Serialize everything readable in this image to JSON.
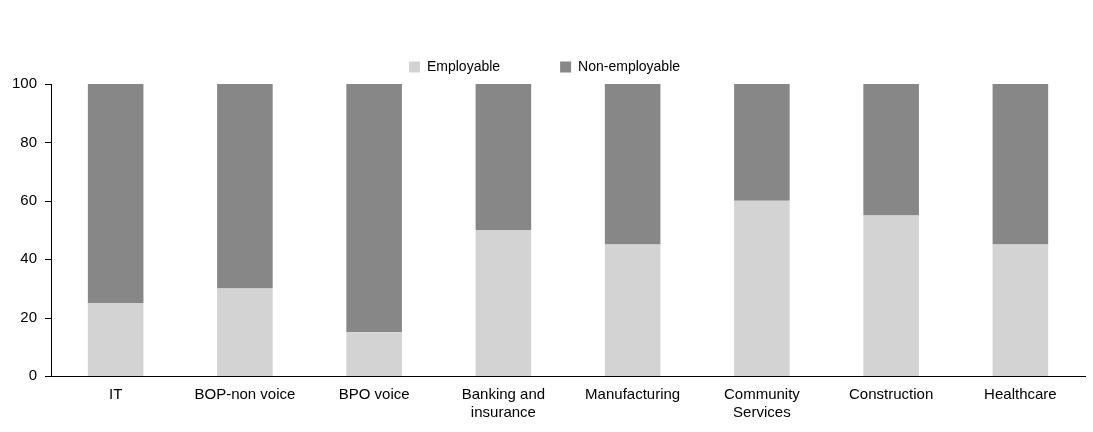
{
  "chart_data": {
    "type": "bar",
    "stacked": true,
    "categories": [
      "IT",
      "BOP-non voice",
      "BPO voice",
      "Banking and insurance",
      "Manufacturing",
      "Community Services",
      "Construction",
      "Healthcare"
    ],
    "series": [
      {
        "name": "Employable",
        "color": "#d3d3d3",
        "values": [
          25,
          30,
          15,
          50,
          45,
          60,
          55,
          45
        ]
      },
      {
        "name": "Non-employable",
        "color": "#878787",
        "values": [
          75,
          70,
          85,
          50,
          55,
          40,
          45,
          55
        ]
      }
    ],
    "ylim": [
      0,
      100
    ],
    "yticks": [
      0,
      20,
      40,
      60,
      80,
      100
    ],
    "grid": false,
    "legend": "top"
  }
}
